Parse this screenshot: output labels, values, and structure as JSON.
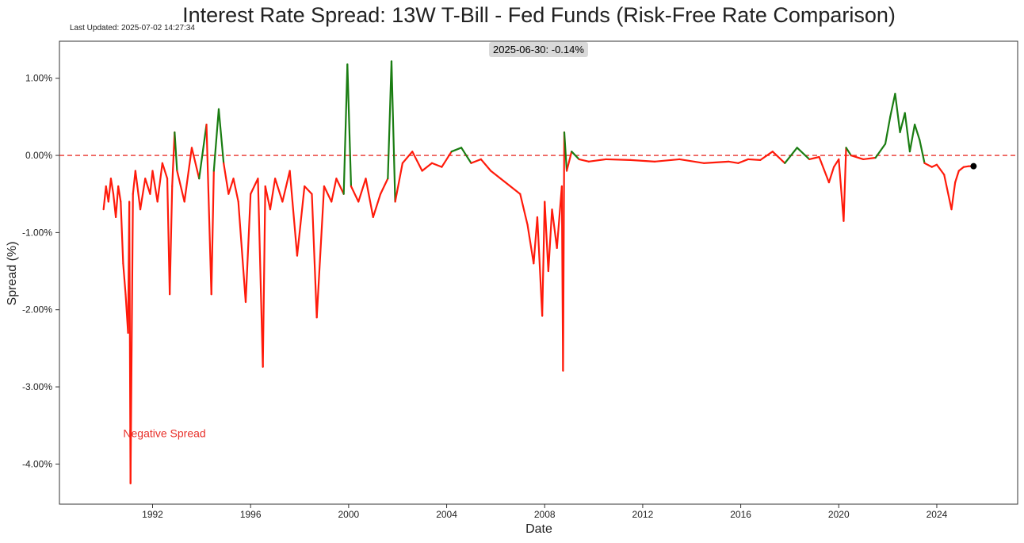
{
  "chart_data": {
    "type": "line",
    "title": "Interest Rate Spread: 13W T-Bill - Fed Funds (Risk-Free Rate Comparison)",
    "last_updated": "Last Updated: 2025-07-02 14:27:34",
    "xlabel": "Date",
    "ylabel": "Spread (%)",
    "xlim": [
      1988.2,
      2027.3
    ],
    "ylim": [
      -4.52,
      1.48
    ],
    "x_ticks": [
      1992,
      1996,
      2000,
      2004,
      2008,
      2012,
      2016,
      2020,
      2024
    ],
    "x_tick_labels": [
      "1992",
      "1996",
      "2000",
      "2004",
      "2008",
      "2012",
      "2016",
      "2020",
      "2024"
    ],
    "y_ticks": [
      1,
      0,
      -1,
      -2,
      -3,
      -4
    ],
    "y_tick_labels": [
      "1.00%",
      "0.00%",
      "-1.00%",
      "-2.00%",
      "-3.00%",
      "-4.00%"
    ],
    "zero_line": {
      "y": 0,
      "color": "#e8302a",
      "style": "dashed"
    },
    "colors": {
      "positive": "#1a7d12",
      "negative": "#ff1a0a",
      "marker": "#000000",
      "annotation_box": "#d9d9d9"
    },
    "series": [
      {
        "name": "Spread",
        "x": [
          1990.0,
          1990.1,
          1990.2,
          1990.3,
          1990.4,
          1990.5,
          1990.6,
          1990.7,
          1990.8,
          1990.9,
          1991.0,
          1991.05,
          1991.1,
          1991.2,
          1991.3,
          1991.5,
          1991.7,
          1991.9,
          1992.0,
          1992.2,
          1992.4,
          1992.6,
          1992.7,
          1992.8,
          1992.9,
          1993.0,
          1993.3,
          1993.6,
          1993.9,
          1994.2,
          1994.4,
          1994.5,
          1994.7,
          1994.9,
          1995.1,
          1995.3,
          1995.5,
          1995.8,
          1996.0,
          1996.3,
          1996.5,
          1996.6,
          1996.8,
          1997.0,
          1997.3,
          1997.6,
          1997.9,
          1998.2,
          1998.5,
          1998.7,
          1999.0,
          1999.3,
          1999.5,
          1999.8,
          1999.95,
          2000.1,
          2000.4,
          2000.7,
          2001.0,
          2001.3,
          2001.6,
          2001.75,
          2001.9,
          2002.2,
          2002.6,
          2003.0,
          2003.4,
          2003.8,
          2004.2,
          2004.6,
          2005.0,
          2005.4,
          2005.8,
          2006.2,
          2006.6,
          2007.0,
          2007.3,
          2007.55,
          2007.7,
          2007.9,
          2008.0,
          2008.15,
          2008.3,
          2008.5,
          2008.7,
          2008.75,
          2008.8,
          2008.9,
          2009.1,
          2009.4,
          2009.8,
          2010.5,
          2011.5,
          2012.5,
          2013.5,
          2014.5,
          2015.5,
          2015.9,
          2016.3,
          2016.8,
          2017.3,
          2017.8,
          2018.3,
          2018.8,
          2019.2,
          2019.6,
          2019.8,
          2020.0,
          2020.2,
          2020.3,
          2020.5,
          2021.0,
          2021.5,
          2021.9,
          2022.1,
          2022.3,
          2022.5,
          2022.7,
          2022.9,
          2023.1,
          2023.3,
          2023.5,
          2023.8,
          2024.0,
          2024.3,
          2024.6,
          2024.75,
          2024.9,
          2025.1,
          2025.3,
          2025.5
        ],
        "values": [
          -0.7,
          -0.4,
          -0.6,
          -0.3,
          -0.5,
          -0.8,
          -0.4,
          -0.6,
          -1.4,
          -1.8,
          -2.3,
          -0.6,
          -4.25,
          -0.5,
          -0.2,
          -0.7,
          -0.3,
          -0.5,
          -0.2,
          -0.6,
          -0.1,
          -0.3,
          -1.8,
          -0.4,
          0.3,
          -0.2,
          -0.6,
          0.1,
          -0.3,
          0.4,
          -1.8,
          -0.2,
          0.6,
          -0.1,
          -0.5,
          -0.3,
          -0.6,
          -1.9,
          -0.5,
          -0.3,
          -2.74,
          -0.4,
          -0.7,
          -0.3,
          -0.6,
          -0.2,
          -1.3,
          -0.4,
          -0.5,
          -2.1,
          -0.4,
          -0.6,
          -0.3,
          -0.5,
          1.18,
          -0.4,
          -0.6,
          -0.3,
          -0.8,
          -0.5,
          -0.3,
          1.22,
          -0.6,
          -0.1,
          0.05,
          -0.2,
          -0.1,
          -0.15,
          0.05,
          0.1,
          -0.1,
          -0.05,
          -0.2,
          -0.3,
          -0.4,
          -0.5,
          -0.9,
          -1.4,
          -0.8,
          -2.08,
          -0.6,
          -1.5,
          -0.7,
          -1.2,
          -0.4,
          -2.79,
          0.3,
          -0.2,
          0.05,
          -0.05,
          -0.08,
          -0.05,
          -0.06,
          -0.08,
          -0.05,
          -0.1,
          -0.08,
          -0.1,
          -0.05,
          -0.06,
          0.05,
          -0.1,
          0.1,
          -0.05,
          -0.02,
          -0.35,
          -0.15,
          -0.05,
          -0.85,
          0.1,
          0.0,
          -0.05,
          -0.03,
          0.15,
          0.5,
          0.8,
          0.3,
          0.55,
          0.05,
          0.4,
          0.2,
          -0.1,
          -0.15,
          -0.12,
          -0.25,
          -0.7,
          -0.35,
          -0.2,
          -0.15,
          -0.14,
          -0.14
        ]
      }
    ],
    "last_point": {
      "x": 2025.5,
      "y": -0.14,
      "label": "2025-06-30: -0.14%"
    },
    "annotations": [
      {
        "text": "Negative Spread",
        "color": "#e8302a",
        "x": 1990.8,
        "y": -3.6
      }
    ]
  }
}
